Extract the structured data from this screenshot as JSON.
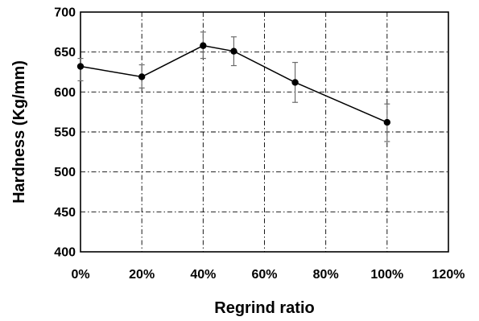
{
  "chart_data": {
    "type": "line",
    "title": "",
    "xlabel": "Regrind ratio",
    "ylabel": "Hardness (Kg/mm)",
    "xlim": [
      0,
      120
    ],
    "ylim": [
      400,
      700
    ],
    "x_tick_values": [
      0,
      20,
      40,
      60,
      80,
      100,
      120
    ],
    "x_tick_labels": [
      "0%",
      "20%",
      "40%",
      "60%",
      "80%",
      "100%",
      "120%"
    ],
    "y_tick_values": [
      400,
      450,
      500,
      550,
      600,
      650,
      700
    ],
    "y_tick_labels": [
      "400",
      "450",
      "500",
      "550",
      "600",
      "650",
      "700"
    ],
    "grid": true,
    "legend": "none",
    "series": [
      {
        "x": [
          0,
          20,
          40,
          50,
          70,
          100
        ],
        "y": [
          632,
          619,
          658,
          651,
          612,
          562
        ],
        "error_plus": [
          10,
          15,
          17,
          18,
          25,
          23
        ],
        "error_minus": [
          18,
          14,
          16,
          18,
          25,
          24
        ],
        "color": "#000000",
        "marker": "circle"
      }
    ]
  }
}
